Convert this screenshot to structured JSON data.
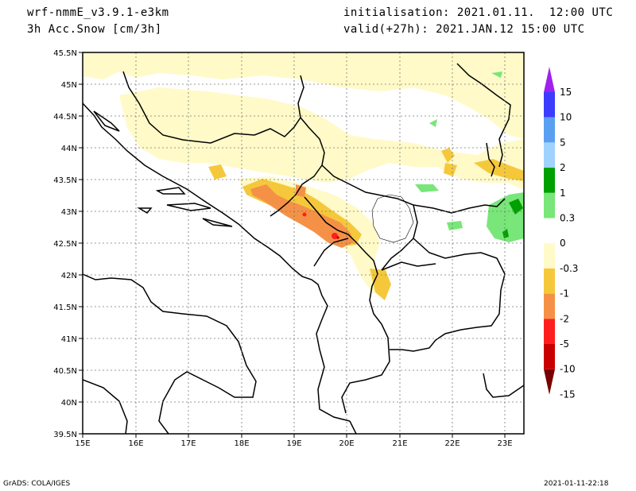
{
  "header": {
    "model": "wrf-nmmE_v3.9.1-e3km",
    "field": "3h Acc.Snow [cm/3h]",
    "init": "initialisation: 2021.01.11.  12:00 UTC",
    "valid": "valid(+27h): 2021.JAN.12 15:00 UTC"
  },
  "footer": {
    "credit": "GrADS: COLA/IGES",
    "timestamp": "2021-01-11-22:18"
  },
  "map": {
    "lon_labels": [
      "15E",
      "16E",
      "17E",
      "18E",
      "19E",
      "20E",
      "21E",
      "22E",
      "23E"
    ],
    "lat_labels": [
      "45.5N",
      "45N",
      "44.5N",
      "44N",
      "43.5N",
      "43N",
      "42.5N",
      "42N",
      "41.5N",
      "41N",
      "40.5N",
      "40N",
      "39.5N"
    ]
  },
  "colorbar": {
    "labels": [
      "15",
      "10",
      "5",
      "2",
      "1",
      "0.3",
      "0",
      "-0.3",
      "-1",
      "-2",
      "-5",
      "-10",
      "-15"
    ],
    "colors": [
      "#a020f0",
      "#3c3cff",
      "#5aa0f0",
      "#a0d2ff",
      "#00a000",
      "#78e678",
      "#ffffff",
      "#fffac8",
      "#f5c83c",
      "#f59146",
      "#ff1e1e",
      "#c80000",
      "#780000"
    ]
  }
}
